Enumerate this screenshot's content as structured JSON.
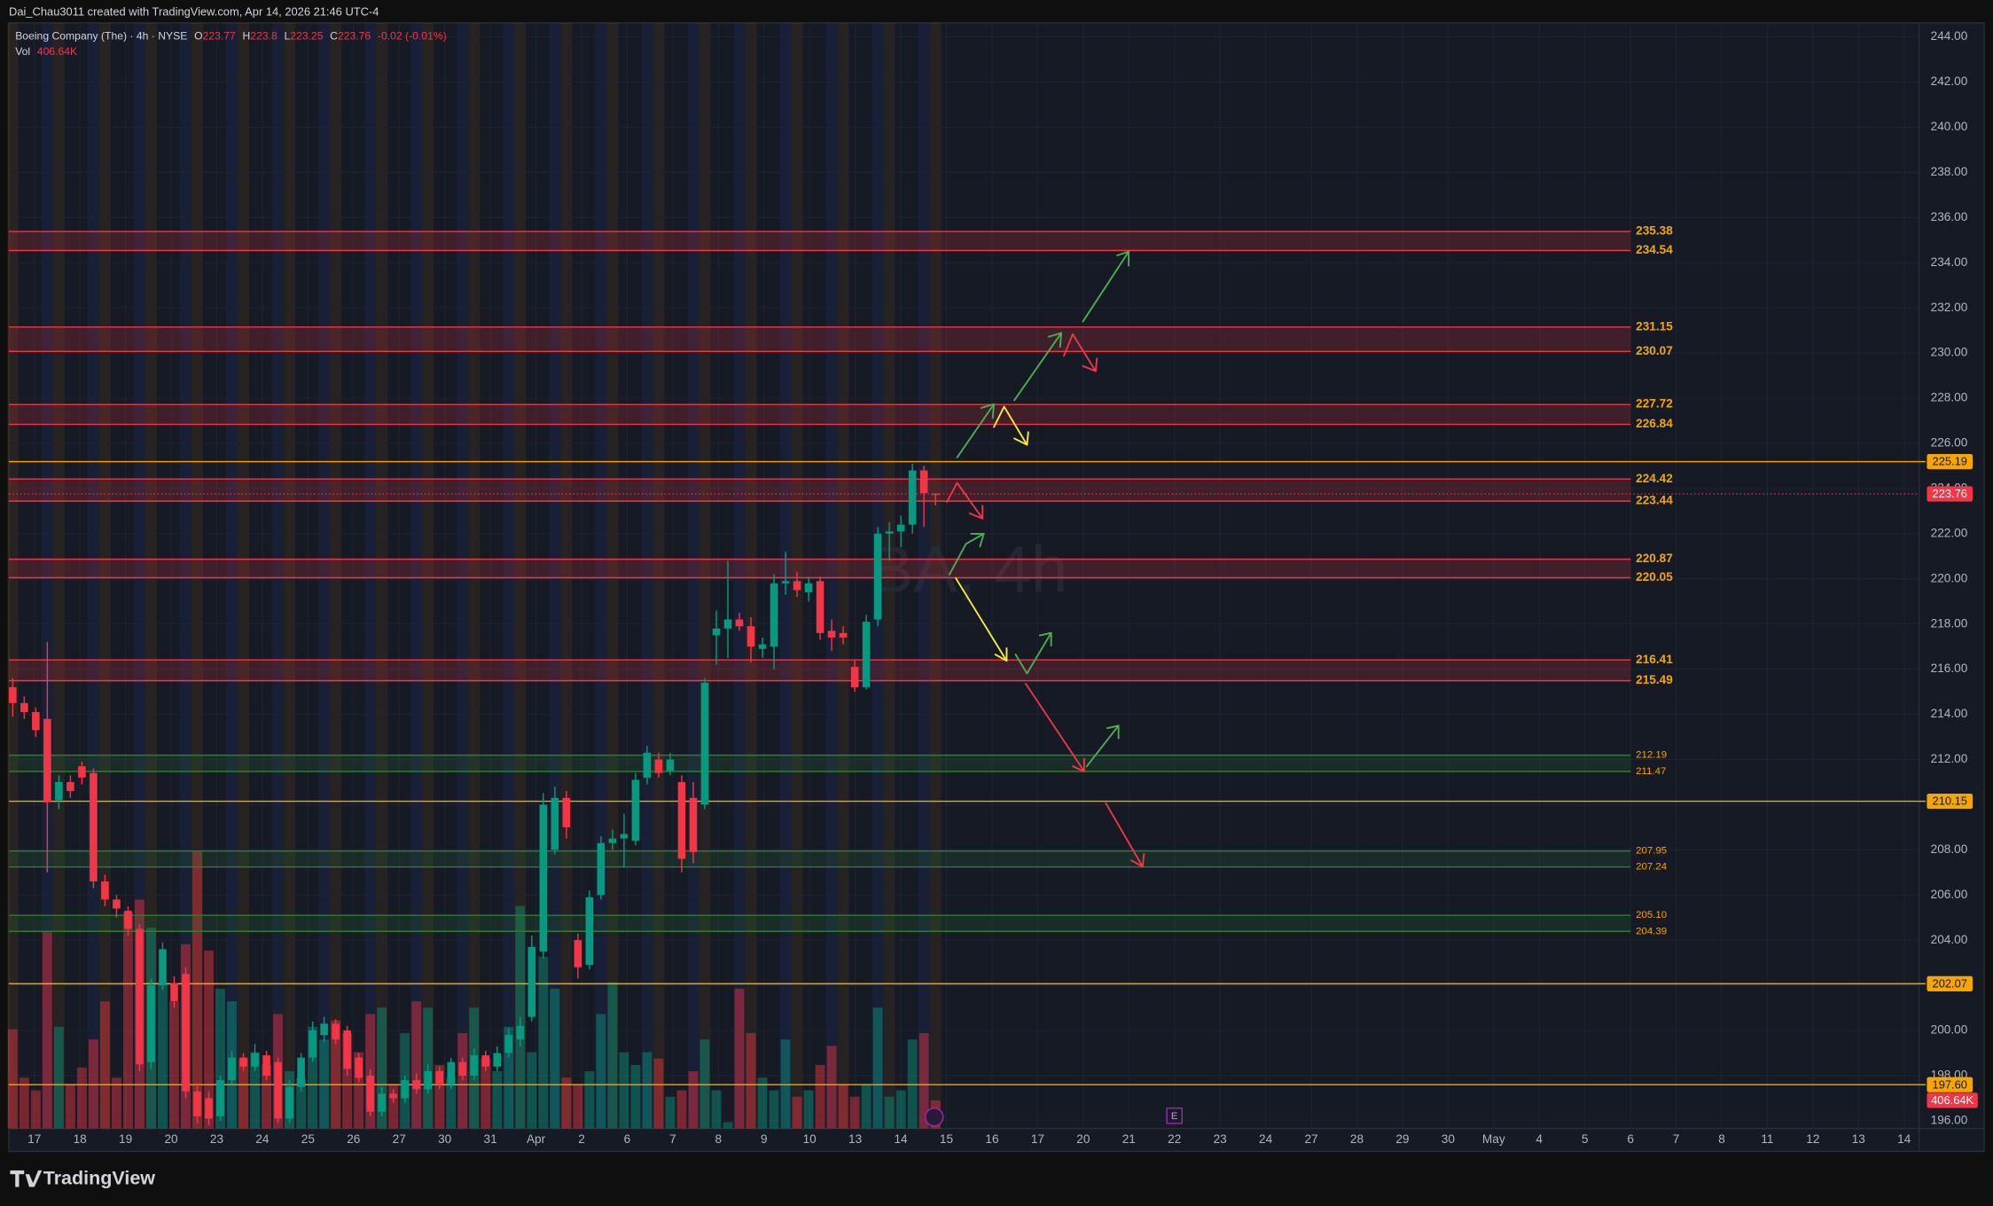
{
  "header": {
    "credit": "Dai_Chau3011 created with TradingView.com, Apr 14, 2026 21:46 UTC-4"
  },
  "footer": {
    "brand": "TradingView"
  },
  "chart_data": {
    "type": "candlestick",
    "title": "Boeing Company (The) · 4h · NYSE",
    "legend": {
      "o": "O",
      "h": "H",
      "l": "L",
      "c": "C",
      "change": "-0.02 (-0.01%)",
      "vol_title": "Vol"
    },
    "volume_last_label": "406.64K",
    "watermark": "BA, 4h",
    "earnings_marker": "E",
    "up_color": "#089981",
    "down_color": "#f23645",
    "x_labels": [
      "17",
      "18",
      "19",
      "20",
      "23",
      "24",
      "25",
      "26",
      "27",
      "30",
      "31",
      "Apr",
      "2",
      "6",
      "7",
      "8",
      "9",
      "10",
      "13",
      "14",
      "15",
      "16",
      "17",
      "20",
      "21",
      "22",
      "23",
      "24",
      "27",
      "28",
      "29",
      "30",
      "May",
      "4",
      "5",
      "6",
      "7",
      "8",
      "11",
      "12",
      "13",
      "14"
    ],
    "open": [
      215.2,
      214.5,
      214.1,
      213.8,
      210.2,
      211.0,
      211.7,
      211.4,
      206.6,
      205.8,
      205.3,
      204.5,
      198.6,
      202.0,
      202.1,
      202.5,
      197.3,
      197.0,
      196.2,
      197.8,
      198.8,
      198.4,
      198.9,
      198.6,
      196.1,
      197.5,
      198.8,
      199.8,
      200.3,
      200.0,
      198.8,
      198.0,
      196.4,
      197.2,
      197.0,
      197.8,
      197.4,
      198.2,
      197.6,
      198.6,
      198.0,
      198.9,
      198.4,
      199.0,
      199.6,
      200.6,
      203.5,
      208.0,
      210.3,
      204.0,
      202.9,
      206.0,
      208.3,
      208.5,
      208.4,
      211.2,
      212.0,
      211.5,
      211.0,
      210.3,
      210.0,
      217.5,
      217.8,
      218.2,
      217.9,
      216.9,
      217.0,
      219.8,
      219.9,
      219.4,
      219.9,
      217.7,
      217.6,
      216.1,
      215.2,
      218.2,
      222.0,
      222.1,
      222.4,
      224.8,
      223.77
    ],
    "high": [
      215.6,
      214.8,
      214.3,
      217.2,
      211.3,
      211.3,
      211.9,
      211.6,
      206.9,
      206.0,
      205.5,
      204.7,
      202.3,
      203.9,
      202.4,
      202.8,
      197.6,
      197.3,
      198.0,
      199.1,
      199.0,
      199.4,
      199.1,
      198.8,
      197.8,
      199.0,
      200.4,
      200.6,
      200.5,
      200.2,
      199.0,
      198.3,
      197.5,
      197.4,
      198.0,
      198.1,
      198.5,
      198.4,
      198.8,
      198.8,
      199.2,
      199.1,
      199.3,
      200.1,
      200.6,
      204.2,
      210.5,
      210.8,
      210.6,
      204.3,
      206.2,
      208.6,
      208.9,
      209.6,
      211.4,
      212.6,
      212.3,
      212.3,
      211.3,
      211.0,
      215.6,
      218.6,
      220.8,
      218.5,
      218.3,
      217.4,
      220.2,
      221.2,
      220.3,
      220.1,
      220.1,
      218.2,
      217.9,
      216.4,
      218.4,
      222.3,
      222.5,
      222.8,
      225.1,
      225.0,
      223.8
    ],
    "low": [
      213.9,
      213.8,
      213.0,
      207.0,
      209.8,
      210.3,
      210.9,
      206.3,
      205.5,
      205.0,
      204.2,
      198.2,
      198.3,
      201.8,
      201.0,
      197.0,
      195.9,
      195.8,
      196.0,
      197.6,
      198.2,
      198.2,
      197.8,
      195.9,
      195.9,
      197.3,
      198.6,
      199.5,
      199.4,
      198.0,
      197.7,
      196.2,
      196.2,
      196.8,
      196.8,
      197.2,
      197.2,
      197.4,
      197.4,
      197.8,
      197.8,
      198.2,
      198.2,
      198.8,
      199.3,
      200.4,
      203.2,
      207.8,
      208.5,
      202.3,
      202.7,
      205.8,
      208.0,
      207.2,
      208.2,
      210.9,
      211.2,
      211.3,
      207.0,
      207.4,
      209.8,
      216.2,
      216.5,
      217.7,
      216.3,
      216.5,
      216.0,
      219.3,
      219.2,
      219.0,
      217.3,
      216.8,
      217.1,
      215.0,
      215.1,
      217.9,
      220.8,
      221.4,
      222.0,
      222.3,
      223.25
    ],
    "close": [
      214.5,
      214.1,
      213.3,
      210.1,
      211.0,
      210.6,
      211.2,
      206.6,
      205.8,
      205.4,
      204.5,
      198.5,
      202.0,
      203.6,
      201.3,
      197.3,
      196.2,
      196.1,
      197.8,
      198.8,
      198.4,
      199.0,
      198.0,
      196.1,
      197.5,
      198.8,
      200.0,
      200.3,
      199.6,
      198.3,
      197.9,
      196.4,
      197.2,
      197.0,
      197.8,
      197.4,
      198.2,
      197.6,
      198.6,
      198.0,
      198.9,
      198.4,
      199.0,
      199.8,
      200.2,
      203.7,
      210.0,
      210.3,
      209.0,
      202.8,
      205.9,
      208.3,
      208.5,
      208.7,
      211.1,
      212.3,
      211.4,
      212.0,
      207.6,
      207.9,
      215.4,
      217.8,
      218.2,
      217.9,
      217.0,
      217.1,
      219.8,
      219.9,
      219.5,
      219.8,
      217.6,
      217.4,
      217.4,
      215.2,
      218.1,
      222.0,
      222.1,
      222.4,
      224.8,
      223.8,
      223.76
    ],
    "volume": [
      1435,
      736,
      552,
      2852,
      1472,
      644,
      883,
      1288,
      1840,
      736,
      3128,
      3312,
      2907,
      2116,
      1840,
      2668,
      4011,
      2576,
      2024,
      1840,
      1012,
      1104,
      920,
      1656,
      828,
      736,
      1472,
      1288,
      1564,
      1380,
      1104,
      1656,
      1748,
      644,
      1380,
      1840,
      1748,
      920,
      736,
      1380,
      1748,
      1012,
      828,
      1472,
      3220,
      1104,
      2484,
      2024,
      736,
      644,
      828,
      1656,
      2116,
      1104,
      920,
      1104,
      1012,
      460,
      552,
      828,
      1288,
      552,
      92,
      2024,
      1380,
      736,
      552,
      1288,
      460,
      552,
      920,
      1196,
      644,
      460,
      644,
      1748,
      460,
      552,
      1288,
      1380,
      406.64
    ],
    "volume_lim": [
      0,
      16000
    ],
    "ylim": [
      195.66,
      244.62
    ],
    "yticks": [
      {
        "value": 196,
        "label": "196.00"
      },
      {
        "value": 198,
        "label": "198.00"
      },
      {
        "value": 200,
        "label": "200.00"
      },
      {
        "value": 202,
        "label": "202.00"
      },
      {
        "value": 204,
        "label": "204.00"
      },
      {
        "value": 206,
        "label": "206.00"
      },
      {
        "value": 208,
        "label": "208.00"
      },
      {
        "value": 210,
        "label": "210.00"
      },
      {
        "value": 212,
        "label": "212.00"
      },
      {
        "value": 214,
        "label": "214.00"
      },
      {
        "value": 216,
        "label": "216.00"
      },
      {
        "value": 218,
        "label": "218.00"
      },
      {
        "value": 220,
        "label": "220.00"
      },
      {
        "value": 222,
        "label": "222.00"
      },
      {
        "value": 224,
        "label": "224.00"
      },
      {
        "value": 226,
        "label": "226.00"
      },
      {
        "value": 228,
        "label": "228.00"
      },
      {
        "value": 230,
        "label": "230.00"
      },
      {
        "value": 232,
        "label": "232.00"
      },
      {
        "value": 234,
        "label": "234.00"
      },
      {
        "value": 236,
        "label": "236.00"
      },
      {
        "value": 238,
        "label": "238.00"
      },
      {
        "value": 240,
        "label": "240.00"
      },
      {
        "value": 242,
        "label": "242.00"
      },
      {
        "value": 244,
        "label": "244.00"
      }
    ],
    "grid": true,
    "zones": [
      {
        "upper": 235.38,
        "lower": 234.54,
        "color": "#f23645"
      },
      {
        "upper": 231.15,
        "lower": 230.07,
        "color": "#f23645"
      },
      {
        "upper": 227.72,
        "lower": 226.84,
        "color": "#f23645"
      },
      {
        "upper": 224.42,
        "lower": 223.44,
        "color": "#f23645"
      },
      {
        "upper": 220.87,
        "lower": 220.05,
        "color": "#f23645"
      },
      {
        "upper": 216.41,
        "lower": 215.49,
        "color": "#f23645"
      },
      {
        "upper": 212.19,
        "lower": 211.47,
        "color": "#2e7d32"
      },
      {
        "upper": 207.95,
        "lower": 207.24,
        "color": "#2e7d32"
      },
      {
        "upper": {
          "value": 205.1,
          "label": "205.10"
        },
        "lower": 204.39,
        "color": "#2e7d32"
      }
    ],
    "zone_label_color": "#f7a600",
    "levels": [
      225.19,
      210.15,
      202.07,
      {
        "value": 197.6,
        "label": "197.60"
      }
    ],
    "level_color": "#f7a600"
  }
}
